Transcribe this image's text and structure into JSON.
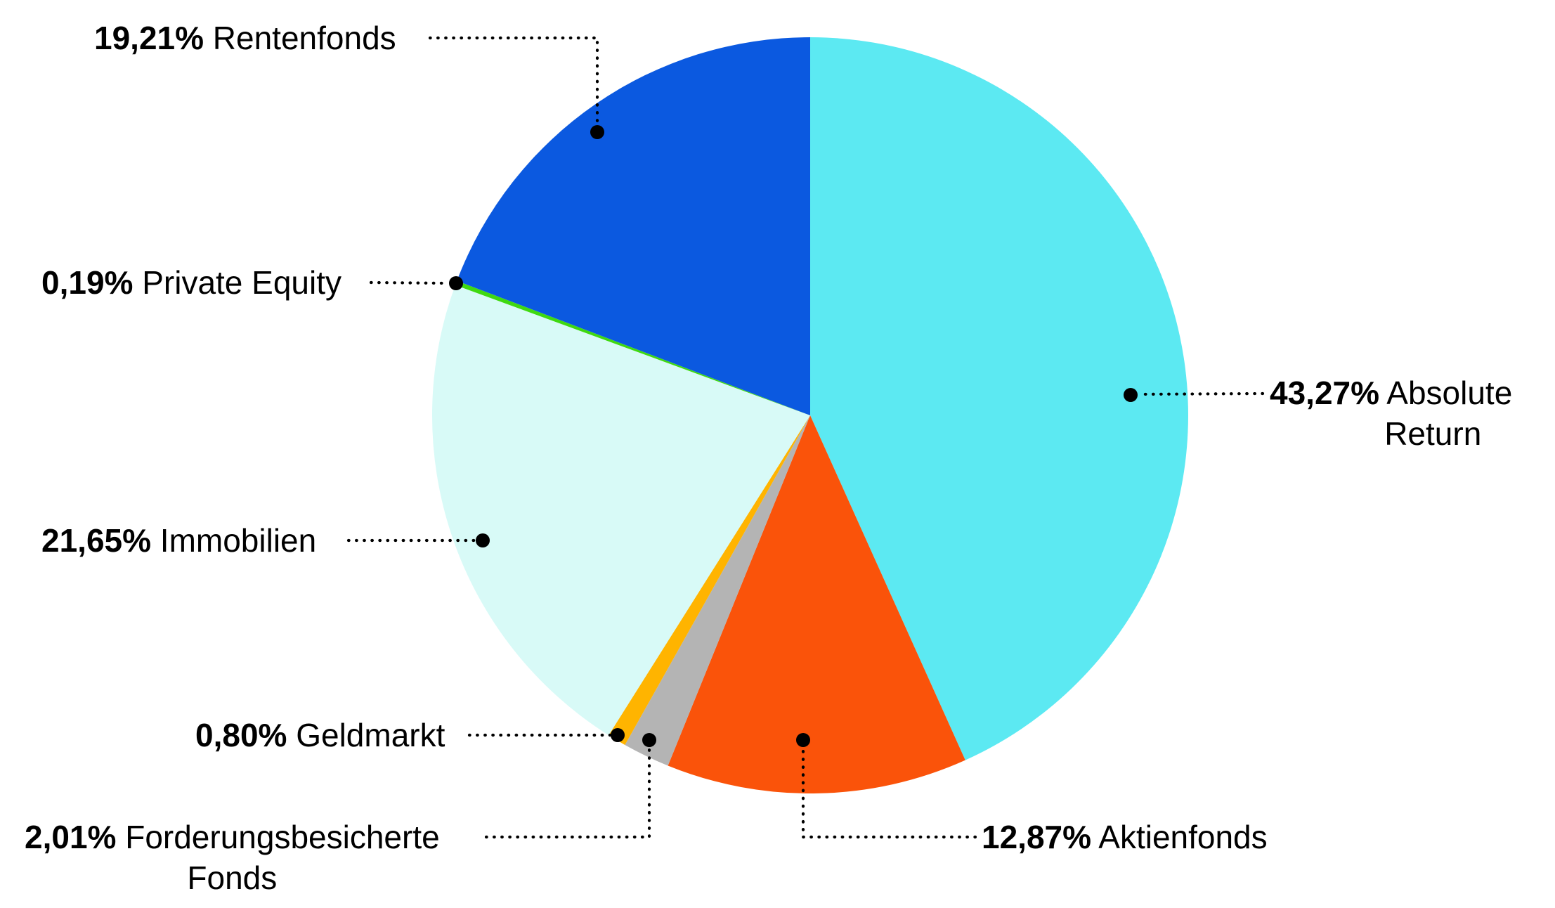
{
  "chart_data": {
    "type": "pie",
    "title": "",
    "unit": "percent",
    "start_angle_deg": 0,
    "direction": "clockwise",
    "total": 100,
    "legend_position": "callout-labels",
    "slices": [
      {
        "id": "absolute-return",
        "name": "Absolute Return",
        "label_lines": [
          "Absolute",
          "Return"
        ],
        "value": 43.27,
        "pct_label": "43,27%",
        "color": "#5CE9F2"
      },
      {
        "id": "aktienfonds",
        "name": "Aktienfonds",
        "label_lines": [
          "Aktienfonds"
        ],
        "value": 12.87,
        "pct_label": "12,87%",
        "color": "#FA530A"
      },
      {
        "id": "forderungsbesicherte-fonds",
        "name": "Forderungsbesicherte Fonds",
        "label_lines": [
          "Forderungsbesicherte",
          "Fonds"
        ],
        "value": 2.01,
        "pct_label": "2,01%",
        "color": "#B4B4B4"
      },
      {
        "id": "geldmarkt",
        "name": "Geldmarkt",
        "label_lines": [
          "Geldmarkt"
        ],
        "value": 0.8,
        "pct_label": "0,80%",
        "color": "#FFB400"
      },
      {
        "id": "immobilien",
        "name": "Immobilien",
        "label_lines": [
          "Immobilien"
        ],
        "value": 21.65,
        "pct_label": "21,65%",
        "color": "#D8FAF7"
      },
      {
        "id": "private-equity",
        "name": "Private Equity",
        "label_lines": [
          "Private Equity"
        ],
        "value": 0.19,
        "pct_label": "0,19%",
        "color": "#3FD911"
      },
      {
        "id": "rentenfonds",
        "name": "Rentenfonds",
        "label_lines": [
          "Rentenfonds"
        ],
        "value": 19.21,
        "pct_label": "19,21%",
        "color": "#0B59E0"
      }
    ],
    "callout_style": {
      "line_color": "#000000",
      "dot_color": "#000000"
    }
  }
}
